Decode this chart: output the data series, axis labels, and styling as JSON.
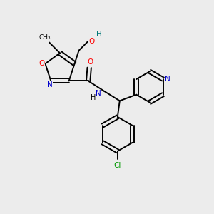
{
  "bg_color": "#ececec",
  "bond_color": "#000000",
  "colors": {
    "N": "#0000cc",
    "O": "#ff0000",
    "Cl": "#009900",
    "H": "#007777",
    "C": "#000000"
  }
}
